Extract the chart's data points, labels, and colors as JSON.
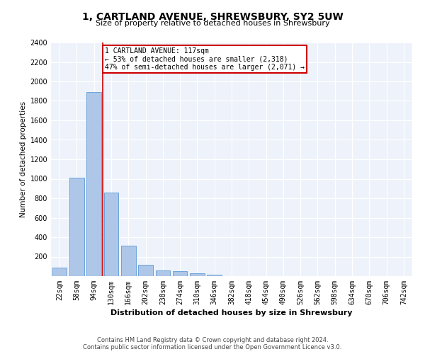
{
  "title": "1, CARTLAND AVENUE, SHREWSBURY, SY2 5UW",
  "subtitle": "Size of property relative to detached houses in Shrewsbury",
  "xlabel": "Distribution of detached houses by size in Shrewsbury",
  "ylabel": "Number of detached properties",
  "bar_color": "#aec6e8",
  "bar_edge_color": "#5b9bd5",
  "bg_color": "#eef3fb",
  "grid_color": "#ffffff",
  "categories": [
    "22sqm",
    "58sqm",
    "94sqm",
    "130sqm",
    "166sqm",
    "202sqm",
    "238sqm",
    "274sqm",
    "310sqm",
    "346sqm",
    "382sqm",
    "418sqm",
    "454sqm",
    "490sqm",
    "526sqm",
    "562sqm",
    "598sqm",
    "634sqm",
    "670sqm",
    "706sqm",
    "742sqm"
  ],
  "values": [
    90,
    1010,
    1890,
    860,
    310,
    115,
    55,
    48,
    28,
    18,
    0,
    0,
    0,
    0,
    0,
    0,
    0,
    0,
    0,
    0,
    0
  ],
  "property_line_x": 2.5,
  "annotation_text": "1 CARTLAND AVENUE: 117sqm\n← 53% of detached houses are smaller (2,318)\n47% of semi-detached houses are larger (2,071) →",
  "annotation_box_color": "#ffffff",
  "annotation_box_edge": "#cc0000",
  "property_line_color": "#cc0000",
  "ylim": [
    0,
    2400
  ],
  "yticks": [
    0,
    200,
    400,
    600,
    800,
    1000,
    1200,
    1400,
    1600,
    1800,
    2000,
    2200,
    2400
  ],
  "footer_line1": "Contains HM Land Registry data © Crown copyright and database right 2024.",
  "footer_line2": "Contains public sector information licensed under the Open Government Licence v3.0.",
  "title_fontsize": 10,
  "subtitle_fontsize": 8,
  "xlabel_fontsize": 8,
  "ylabel_fontsize": 7.5,
  "tick_fontsize": 7,
  "annotation_fontsize": 7,
  "footer_fontsize": 6
}
